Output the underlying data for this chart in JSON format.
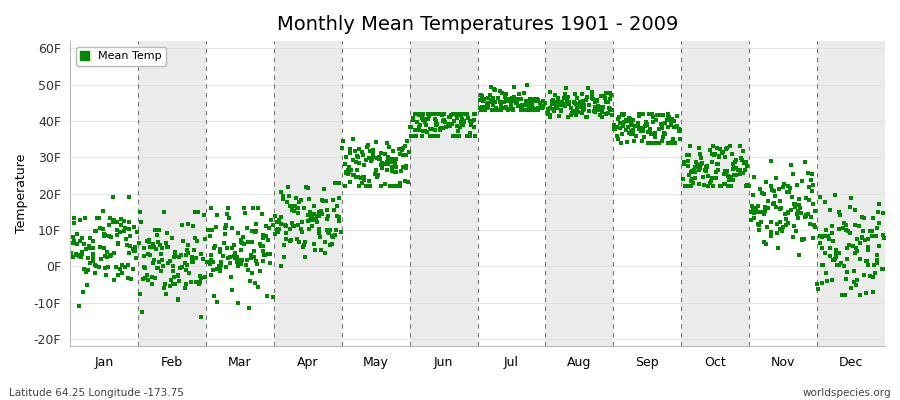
{
  "title": "Monthly Mean Temperatures 1901 - 2009",
  "ylabel": "Temperature",
  "xlabel_labels": [
    "Jan",
    "Feb",
    "Mar",
    "Apr",
    "May",
    "Jun",
    "Jul",
    "Aug",
    "Sep",
    "Oct",
    "Nov",
    "Dec"
  ],
  "ytick_labels": [
    "-20F",
    "-10F",
    "0F",
    "10F",
    "20F",
    "30F",
    "40F",
    "50F",
    "60F"
  ],
  "ytick_values": [
    -20,
    -10,
    0,
    10,
    20,
    30,
    40,
    50,
    60
  ],
  "ylim": [
    -22,
    62
  ],
  "dot_color": "#008800",
  "background_color": "#ffffff",
  "stripe_color_odd": "#ebebeb",
  "legend_label": "Mean Temp",
  "footnote_left": "Latitude 64.25 Longitude -173.75",
  "footnote_right": "worldspecies.org",
  "title_fontsize": 14,
  "axis_fontsize": 9,
  "monthly_means": [
    5,
    1,
    5,
    13,
    28,
    39,
    45,
    44,
    38,
    27,
    16,
    5
  ],
  "monthly_stds": [
    6,
    7,
    6,
    5,
    4,
    3,
    2,
    2,
    3,
    4,
    6,
    7
  ],
  "monthly_ranges": [
    [
      -12,
      19
    ],
    [
      -14,
      15
    ],
    [
      -12,
      16
    ],
    [
      0,
      23
    ],
    [
      22,
      35
    ],
    [
      36,
      42
    ],
    [
      43,
      51
    ],
    [
      41,
      49
    ],
    [
      34,
      42
    ],
    [
      22,
      33
    ],
    [
      3,
      31
    ],
    [
      -8,
      22
    ]
  ],
  "n_years": 109,
  "year_start": 1901,
  "year_end": 2009
}
